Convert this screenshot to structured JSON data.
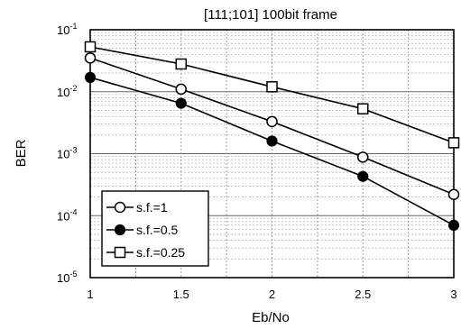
{
  "chart_data": {
    "type": "line",
    "title": "[111;101] 100bit frame",
    "xlabel": "Eb/No",
    "ylabel": "BER",
    "y_scale": "log",
    "xlim": [
      1,
      3
    ],
    "ylim": [
      1e-05,
      0.1
    ],
    "grid": true,
    "legend_position": "bottom-left",
    "x_ticks": [
      "1",
      "1.5",
      "2",
      "2.5",
      "3"
    ],
    "y_ticks": [
      {
        "value": 0.1,
        "base": "10",
        "exp": "-1"
      },
      {
        "value": 0.01,
        "base": "10",
        "exp": "-2"
      },
      {
        "value": 0.001,
        "base": "10",
        "exp": "-3"
      },
      {
        "value": 0.0001,
        "base": "10",
        "exp": "-4"
      },
      {
        "value": 1e-05,
        "base": "10",
        "exp": "-5"
      }
    ],
    "series": [
      {
        "name": "s.f.=1",
        "marker": "open-circle",
        "x": [
          1,
          1.5,
          2,
          2.5,
          3
        ],
        "y": [
          0.035,
          0.011,
          0.0033,
          0.00088,
          0.00022
        ]
      },
      {
        "name": "s.f.=0.5",
        "marker": "filled-circle",
        "x": [
          1,
          1.5,
          2,
          2.5,
          3
        ],
        "y": [
          0.017,
          0.0065,
          0.0016,
          0.00043,
          7e-05
        ]
      },
      {
        "name": "s.f.=0.25",
        "marker": "open-square",
        "x": [
          1,
          1.5,
          2,
          2.5,
          3
        ],
        "y": [
          0.053,
          0.028,
          0.012,
          0.0053,
          0.0015
        ]
      }
    ]
  }
}
